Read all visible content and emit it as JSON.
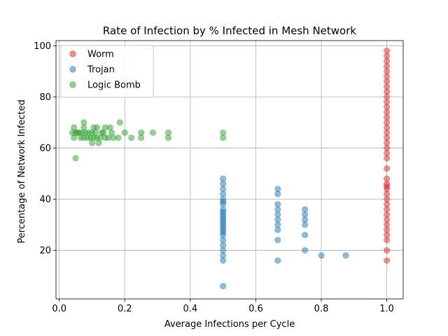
{
  "chart_data": {
    "type": "scatter",
    "title": "Rate of Infection by % Infected in Mesh Network",
    "xlabel": "Average Infections per Cycle",
    "ylabel": "Percentage of Network Infected",
    "xlim": [
      -0.01,
      1.05
    ],
    "ylim": [
      1,
      102
    ],
    "xticks": [
      0.0,
      0.2,
      0.4,
      0.6,
      0.8,
      1.0
    ],
    "xtick_labels": [
      "0.0",
      "0.2",
      "0.4",
      "0.6",
      "0.8",
      "1.0"
    ],
    "yticks": [
      20,
      40,
      60,
      80,
      100
    ],
    "ytick_labels": [
      "20",
      "40",
      "60",
      "80",
      "100"
    ],
    "grid": true,
    "legend_position": "top-left",
    "series": [
      {
        "name": "Worm",
        "color": "#d62728",
        "points": [
          [
            1.0,
            16
          ],
          [
            1.0,
            20
          ],
          [
            1.0,
            24
          ],
          [
            1.0,
            26
          ],
          [
            1.0,
            28
          ],
          [
            1.0,
            30
          ],
          [
            1.0,
            32
          ],
          [
            1.0,
            34
          ],
          [
            1.0,
            36
          ],
          [
            1.0,
            38
          ],
          [
            1.0,
            40
          ],
          [
            1.0,
            42
          ],
          [
            1.0,
            44
          ],
          [
            1.0,
            45
          ],
          [
            1.0,
            46
          ],
          [
            1.0,
            48
          ],
          [
            1.0,
            52
          ],
          [
            1.0,
            56
          ],
          [
            1.0,
            58
          ],
          [
            1.0,
            60
          ],
          [
            1.0,
            62
          ],
          [
            1.0,
            64
          ],
          [
            1.0,
            66
          ],
          [
            1.0,
            68
          ],
          [
            1.0,
            70
          ],
          [
            1.0,
            72
          ],
          [
            1.0,
            74
          ],
          [
            1.0,
            76
          ],
          [
            1.0,
            78
          ],
          [
            1.0,
            80
          ],
          [
            1.0,
            82
          ],
          [
            1.0,
            84
          ],
          [
            1.0,
            86
          ],
          [
            1.0,
            88
          ],
          [
            1.0,
            90
          ],
          [
            1.0,
            92
          ],
          [
            1.0,
            94
          ],
          [
            1.0,
            96
          ],
          [
            1.0,
            98
          ]
        ]
      },
      {
        "name": "Trojan",
        "color": "#1f77b4",
        "points": [
          [
            0.5,
            6
          ],
          [
            0.5,
            16
          ],
          [
            0.5,
            18
          ],
          [
            0.5,
            20
          ],
          [
            0.5,
            22
          ],
          [
            0.5,
            24
          ],
          [
            0.5,
            26
          ],
          [
            0.5,
            27
          ],
          [
            0.5,
            28
          ],
          [
            0.5,
            29
          ],
          [
            0.5,
            30
          ],
          [
            0.5,
            31
          ],
          [
            0.5,
            32
          ],
          [
            0.5,
            33
          ],
          [
            0.5,
            34
          ],
          [
            0.5,
            35
          ],
          [
            0.5,
            36
          ],
          [
            0.5,
            38
          ],
          [
            0.5,
            39
          ],
          [
            0.5,
            40
          ],
          [
            0.5,
            42
          ],
          [
            0.5,
            44
          ],
          [
            0.5,
            46
          ],
          [
            0.5,
            48
          ],
          [
            0.667,
            16
          ],
          [
            0.667,
            24
          ],
          [
            0.667,
            28
          ],
          [
            0.667,
            30
          ],
          [
            0.667,
            32
          ],
          [
            0.667,
            34
          ],
          [
            0.667,
            36
          ],
          [
            0.667,
            38
          ],
          [
            0.667,
            42
          ],
          [
            0.667,
            44
          ],
          [
            0.75,
            20
          ],
          [
            0.75,
            26
          ],
          [
            0.75,
            30
          ],
          [
            0.75,
            32
          ],
          [
            0.75,
            34
          ],
          [
            0.75,
            36
          ],
          [
            0.8,
            18
          ],
          [
            0.875,
            18
          ]
        ]
      },
      {
        "name": "Logic Bomb",
        "color": "#2ca02c",
        "points": [
          [
            0.04,
            66
          ],
          [
            0.045,
            64
          ],
          [
            0.045,
            68
          ],
          [
            0.05,
            56
          ],
          [
            0.05,
            66
          ],
          [
            0.055,
            66
          ],
          [
            0.06,
            66
          ],
          [
            0.065,
            64
          ],
          [
            0.07,
            66
          ],
          [
            0.075,
            64
          ],
          [
            0.075,
            68
          ],
          [
            0.075,
            70
          ],
          [
            0.08,
            66
          ],
          [
            0.085,
            64
          ],
          [
            0.09,
            66
          ],
          [
            0.095,
            64
          ],
          [
            0.1,
            62
          ],
          [
            0.1,
            66
          ],
          [
            0.105,
            64
          ],
          [
            0.105,
            68
          ],
          [
            0.11,
            66
          ],
          [
            0.115,
            64
          ],
          [
            0.115,
            68
          ],
          [
            0.12,
            62
          ],
          [
            0.125,
            64
          ],
          [
            0.13,
            66
          ],
          [
            0.135,
            66
          ],
          [
            0.14,
            64
          ],
          [
            0.14,
            68
          ],
          [
            0.15,
            64
          ],
          [
            0.155,
            68
          ],
          [
            0.16,
            66
          ],
          [
            0.165,
            64
          ],
          [
            0.18,
            64
          ],
          [
            0.185,
            70
          ],
          [
            0.2,
            66
          ],
          [
            0.22,
            64
          ],
          [
            0.25,
            64
          ],
          [
            0.25,
            66
          ],
          [
            0.286,
            66
          ],
          [
            0.333,
            64
          ],
          [
            0.333,
            66
          ],
          [
            0.5,
            64
          ],
          [
            0.5,
            66
          ]
        ]
      }
    ]
  }
}
